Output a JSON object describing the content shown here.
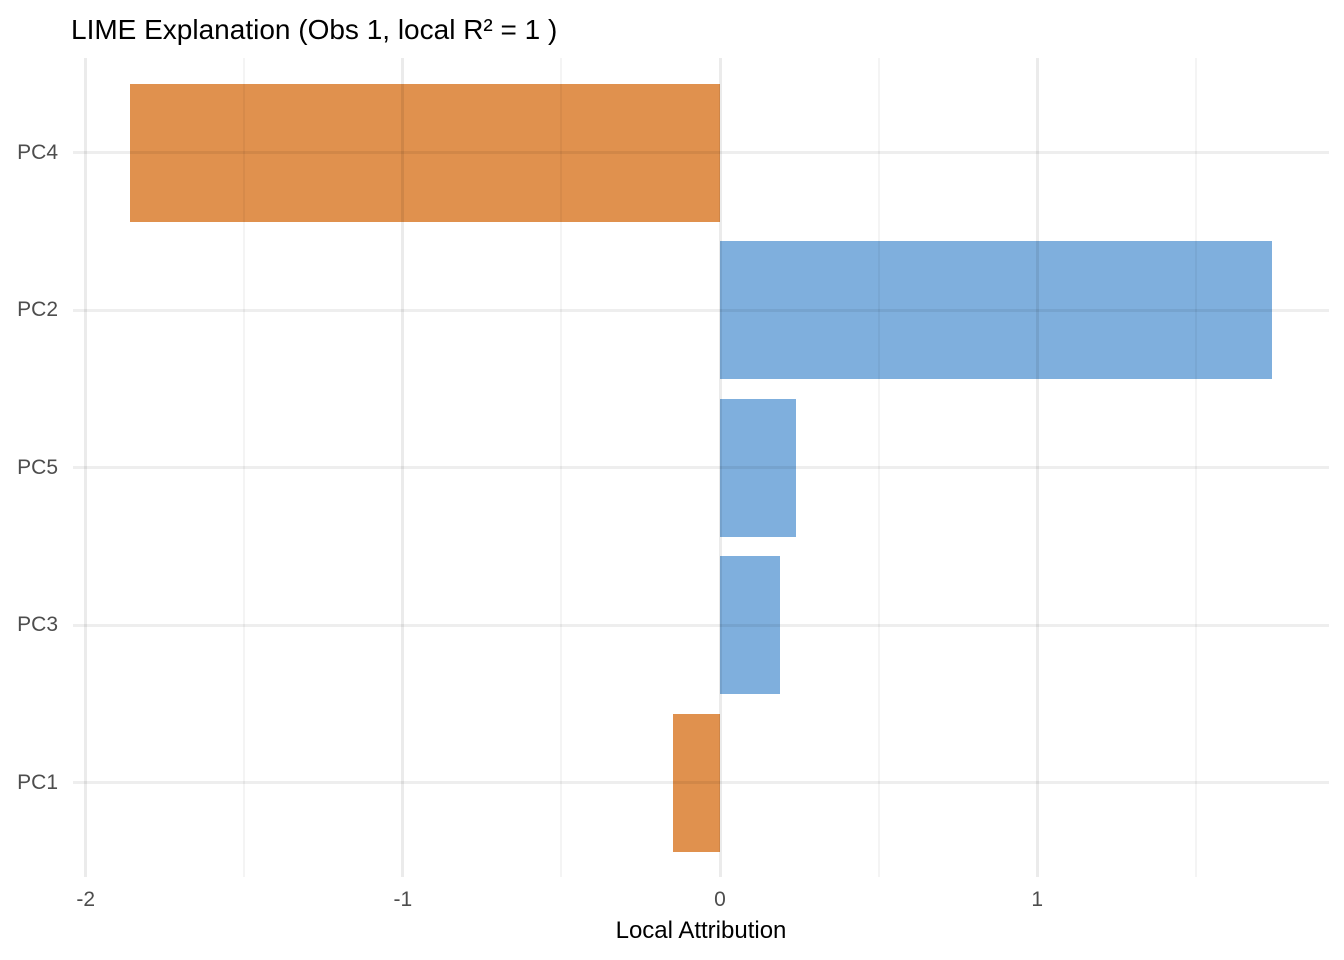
{
  "chart_data": {
    "type": "bar",
    "orientation": "horizontal",
    "title": "LIME Explanation (Obs 1, local R² = 1 )",
    "xlabel": "Local Attribution",
    "ylabel": "",
    "categories": [
      "PC4",
      "PC2",
      "PC5",
      "PC3",
      "PC1"
    ],
    "values": [
      -1.86,
      1.74,
      0.24,
      0.19,
      -0.15
    ],
    "xlim": [
      -2.04,
      1.92
    ],
    "x_major_ticks": [
      -2,
      -1,
      0,
      1
    ],
    "x_tick_labels": [
      "-2",
      "-1",
      "0",
      "1"
    ],
    "x_minor_gridlines": [
      -1.5,
      -0.5,
      0.5,
      1.5
    ],
    "grid": true,
    "legend": false,
    "colors": {
      "positive_bar": "#7FAFDD",
      "negative_bar": "#E0914E",
      "grid_major": "#EBEBEB",
      "grid_minor": "#F4F4F4",
      "axis_text": "#4D4D4D",
      "title_text": "#000000"
    }
  }
}
